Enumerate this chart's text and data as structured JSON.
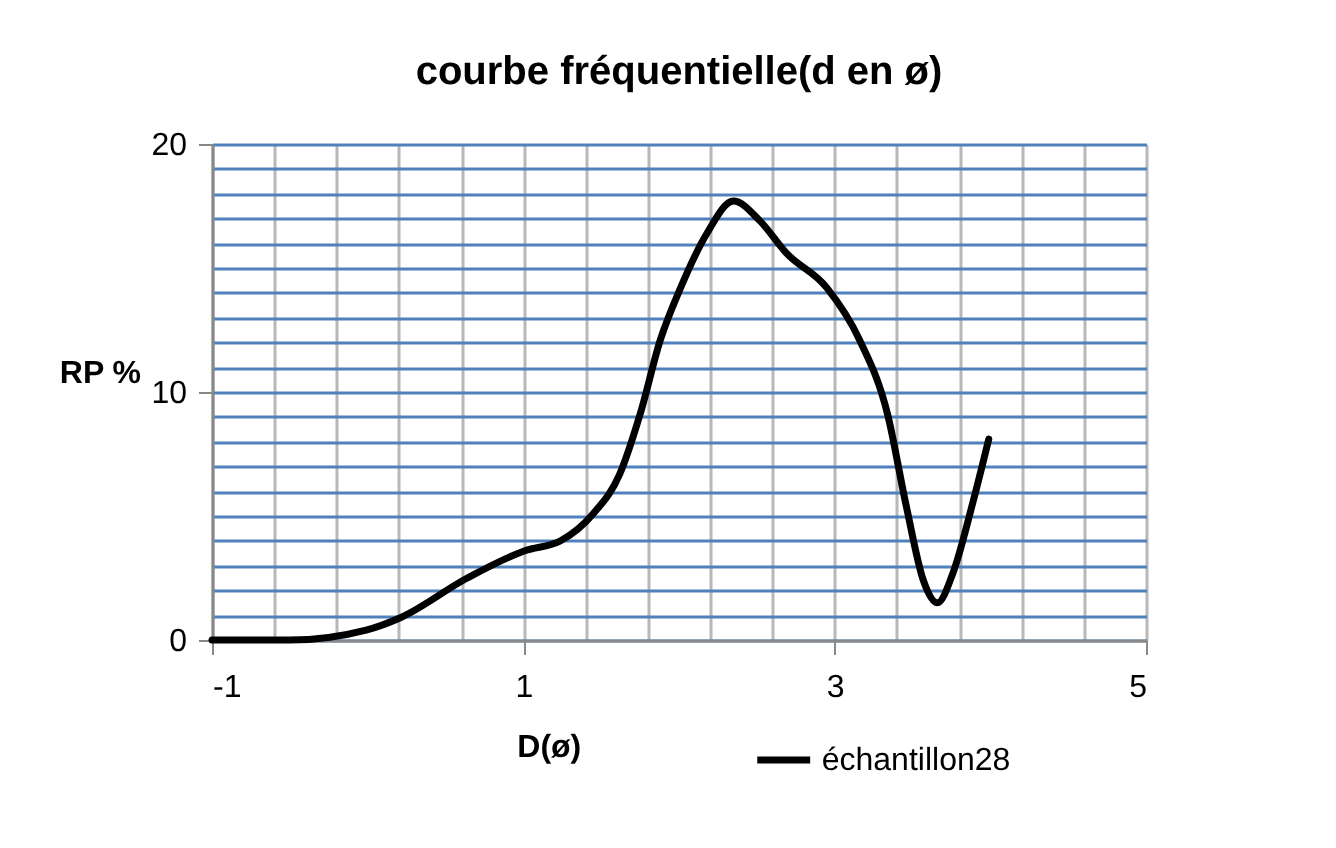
{
  "chart_data": {
    "type": "line",
    "title": "courbe fréquentielle(d en ø)",
    "xlabel": "D(ø)",
    "ylabel": "RP %",
    "x": [
      -1,
      -0.5,
      -0.01,
      0.21,
      0.64,
      1.01,
      1.24,
      1.45,
      1.62,
      1.75,
      1.88,
      2.01,
      2.18,
      2.35,
      2.52,
      2.69,
      2.95,
      3.16,
      3.34,
      3.46,
      3.57,
      3.66,
      3.76,
      3.89,
      3.99
    ],
    "series": [
      {
        "name": "échantillon28",
        "color": "#000000",
        "values": [
          0,
          0,
          0.4,
          0.9,
          2.5,
          3.6,
          4.0,
          5.1,
          6.7,
          9.1,
          12.1,
          14.2,
          16.4,
          17.7,
          16.9,
          15.6,
          14.2,
          12.1,
          9.1,
          5.4,
          2.4,
          1.5,
          2.7,
          5.6,
          8.1
        ]
      }
    ],
    "xlim": [
      -1,
      5
    ],
    "xticks": [
      -1,
      {
        "value": -0.6,
        "label": null
      },
      {
        "value": -0.2,
        "label": null
      },
      {
        "value": 0.2,
        "label": null
      },
      {
        "value": 0.6,
        "label": null
      },
      1,
      {
        "value": 1.4,
        "label": null
      },
      {
        "value": 1.8,
        "label": null
      },
      {
        "value": 2.2,
        "label": null
      },
      {
        "value": 2.6,
        "label": null
      },
      3,
      {
        "value": 3.4,
        "label": null
      },
      {
        "value": 3.8,
        "label": null
      },
      {
        "value": 4.2,
        "label": null
      },
      {
        "value": 4.6,
        "label": null
      },
      5
    ],
    "ylim": [
      0,
      20
    ],
    "yticks": [
      0,
      {
        "value": 1,
        "label": null
      },
      {
        "value": 2,
        "label": null
      },
      {
        "value": 3,
        "label": null
      },
      {
        "value": 4,
        "label": null
      },
      {
        "value": 5,
        "label": null
      },
      {
        "value": 6,
        "label": null
      },
      {
        "value": 7,
        "label": null
      },
      {
        "value": 8,
        "label": null
      },
      {
        "value": 9,
        "label": null
      },
      10,
      {
        "value": 11,
        "label": null
      },
      {
        "value": 12,
        "label": null
      },
      {
        "value": 13,
        "label": null
      },
      {
        "value": 14,
        "label": null
      },
      {
        "value": 15,
        "label": null
      },
      {
        "value": 16,
        "label": null
      },
      {
        "value": 17,
        "label": null
      },
      {
        "value": 18,
        "label": null
      },
      {
        "value": 19,
        "label": null
      },
      20
    ],
    "grid": true,
    "legend": "bottom",
    "marker": "none",
    "line_style": "solid"
  }
}
